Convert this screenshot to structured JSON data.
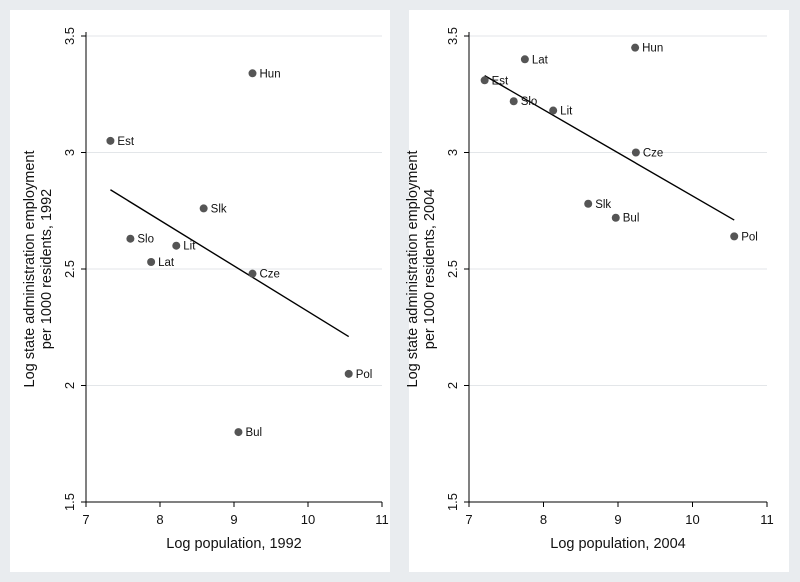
{
  "colors": {
    "background": "#e9ecef",
    "panel": "#ffffff",
    "gridline": "#e3e6e9",
    "axis": "#000000",
    "marker": "#555555",
    "fit_line": "#000000"
  },
  "chart_data": [
    {
      "type": "scatter",
      "title": "",
      "xlabel": "Log population, 1992",
      "ylabel": [
        "Log state administration employment",
        "per 1000 residents, 1992"
      ],
      "xlim": [
        7,
        11
      ],
      "ylim": [
        1.5,
        3.5
      ],
      "xticks": [
        7,
        8,
        9,
        10,
        11
      ],
      "yticks": [
        1.5,
        2,
        2.5,
        3,
        3.5
      ],
      "grid": true,
      "points": [
        {
          "label": "Hun",
          "x": 9.25,
          "y": 3.34
        },
        {
          "label": "Est",
          "x": 7.33,
          "y": 3.05
        },
        {
          "label": "Slk",
          "x": 8.59,
          "y": 2.76
        },
        {
          "label": "Slo",
          "x": 7.6,
          "y": 2.63
        },
        {
          "label": "Lit",
          "x": 8.22,
          "y": 2.6
        },
        {
          "label": "Lat",
          "x": 7.88,
          "y": 2.53
        },
        {
          "label": "Cze",
          "x": 9.25,
          "y": 2.48
        },
        {
          "label": "Pol",
          "x": 10.55,
          "y": 2.05
        },
        {
          "label": "Bul",
          "x": 9.06,
          "y": 1.8
        }
      ],
      "fit_line": {
        "x": [
          7.33,
          10.55
        ],
        "y": [
          2.84,
          2.21
        ]
      }
    },
    {
      "type": "scatter",
      "title": "",
      "xlabel": "Log population, 2004",
      "ylabel": [
        "Log state administration employment",
        "per 1000 residents, 2004"
      ],
      "xlim": [
        7,
        11
      ],
      "ylim": [
        1.5,
        3.5
      ],
      "xticks": [
        7,
        8,
        9,
        10,
        11
      ],
      "yticks": [
        1.5,
        2,
        2.5,
        3,
        3.5
      ],
      "grid": true,
      "points": [
        {
          "label": "Hun",
          "x": 9.23,
          "y": 3.45
        },
        {
          "label": "Lat",
          "x": 7.75,
          "y": 3.4
        },
        {
          "label": "Est",
          "x": 7.21,
          "y": 3.31
        },
        {
          "label": "Slo",
          "x": 7.6,
          "y": 3.22
        },
        {
          "label": "Lit",
          "x": 8.13,
          "y": 3.18
        },
        {
          "label": "Cze",
          "x": 9.24,
          "y": 3.0
        },
        {
          "label": "Slk",
          "x": 8.6,
          "y": 2.78
        },
        {
          "label": "Bul",
          "x": 8.97,
          "y": 2.72
        },
        {
          "label": "Pol",
          "x": 10.56,
          "y": 2.64
        }
      ],
      "fit_line": {
        "x": [
          7.21,
          10.56
        ],
        "y": [
          3.33,
          2.71
        ]
      }
    }
  ]
}
